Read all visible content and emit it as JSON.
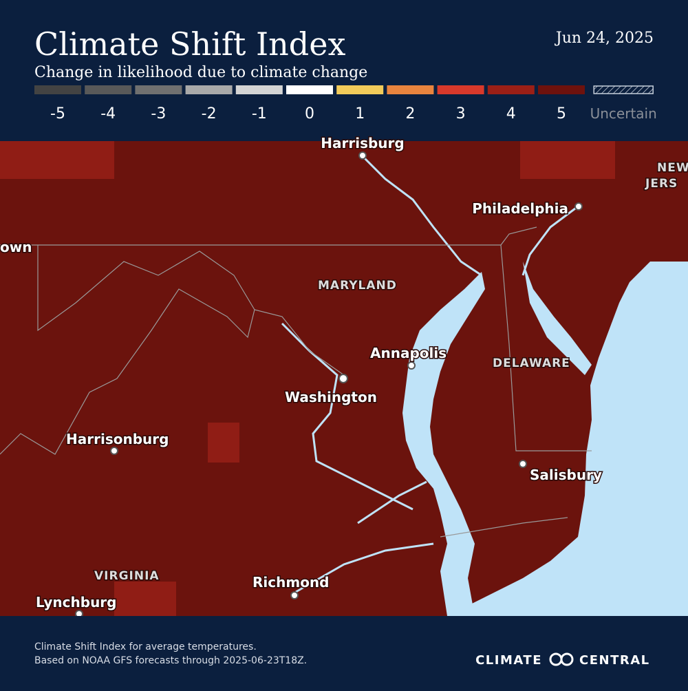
{
  "header": {
    "title": "Climate Shift Index",
    "subtitle": "Change in likelihood due to climate change",
    "date": "Jun 24, 2025"
  },
  "legend": {
    "items": [
      {
        "label": "-5",
        "color": "#434343"
      },
      {
        "label": "-4",
        "color": "#595959"
      },
      {
        "label": "-3",
        "color": "#707070"
      },
      {
        "label": "-2",
        "color": "#a9a9a9"
      },
      {
        "label": "-1",
        "color": "#d4d4d4"
      },
      {
        "label": "0",
        "color": "#ffffff"
      },
      {
        "label": "1",
        "color": "#f2cb5a"
      },
      {
        "label": "2",
        "color": "#e9843e"
      },
      {
        "label": "3",
        "color": "#d8392b"
      },
      {
        "label": "4",
        "color": "#9b1f16"
      },
      {
        "label": "5",
        "color": "#6e120d"
      }
    ],
    "uncertain": "Uncertain"
  },
  "map": {
    "places": [
      "Harrisburg",
      "Philadelphia",
      "NEW",
      "JERS",
      "own",
      "MARYLAND",
      "Annapolis",
      "DELAWARE",
      "Washington",
      "Harrisonburg",
      "Salisbury",
      "VIRGINIA",
      "Richmond",
      "Lynchburg"
    ]
  },
  "footer": {
    "notes": [
      "Climate Shift Index for average temperatures.",
      "Based on NOAA GFS forecasts through 2025-06-23T18Z."
    ],
    "brand": "CLIMATE CENTRAL"
  }
}
